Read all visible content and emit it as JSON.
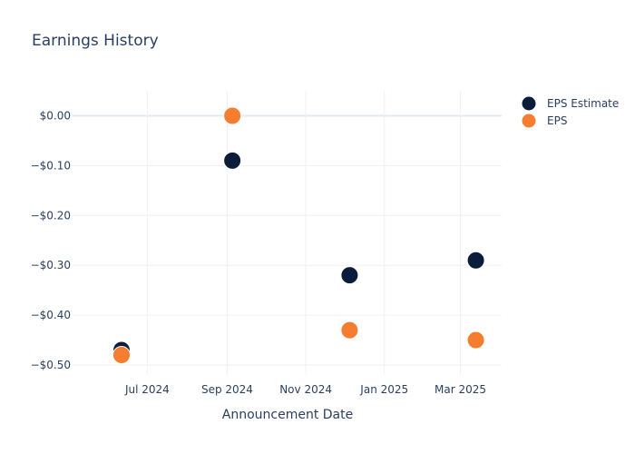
{
  "chart_data": {
    "type": "scatter",
    "title": "Earnings History",
    "xlabel": "Announcement Date",
    "ylabel": "",
    "x_tick_labels": [
      "Jul 2024",
      "Sep 2024",
      "Nov 2024",
      "Jan 2025",
      "Mar 2025"
    ],
    "x_ticks": [
      "2024-07-01",
      "2024-09-01",
      "2024-11-01",
      "2025-01-01",
      "2025-03-01"
    ],
    "xlim": [
      "2024-05-04",
      "2025-04-02"
    ],
    "y_tick_labels": [
      "$0.00",
      "−$0.10",
      "−$0.20",
      "−$0.30",
      "−$0.40",
      "−$0.50"
    ],
    "y_ticks": [
      0,
      -0.1,
      -0.2,
      -0.3,
      -0.4,
      -0.5
    ],
    "ylim": [
      -0.52,
      0.05
    ],
    "grid": true,
    "legend_position": "top-right",
    "series": [
      {
        "name": "EPS Estimate",
        "color": "#0b1d3a",
        "points": [
          {
            "x": "2024-06-11",
            "y": -0.47
          },
          {
            "x": "2024-09-05",
            "y": -0.09
          },
          {
            "x": "2024-12-05",
            "y": -0.32
          },
          {
            "x": "2025-03-13",
            "y": -0.29
          }
        ]
      },
      {
        "name": "EPS",
        "color": "#f47d30",
        "points": [
          {
            "x": "2024-06-11",
            "y": -0.48
          },
          {
            "x": "2024-09-05",
            "y": 0.0
          },
          {
            "x": "2024-12-05",
            "y": -0.43
          },
          {
            "x": "2025-03-13",
            "y": -0.45
          }
        ]
      }
    ]
  }
}
